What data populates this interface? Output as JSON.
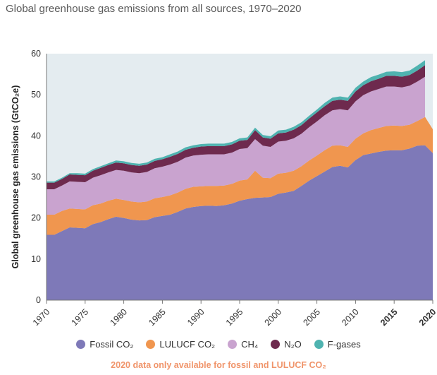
{
  "chart_data": {
    "type": "area",
    "stacked": true,
    "title": "Global greenhouse gas emissions from all sources, 1970–2020",
    "ylabel": "Global greenhouse gas emissions (GtCO₂e)",
    "xlabel": "",
    "xlim": [
      1970,
      2020
    ],
    "ylim": [
      0,
      60
    ],
    "yticks": [
      0,
      10,
      20,
      30,
      40,
      50,
      60
    ],
    "xticks": [
      1970,
      1975,
      1980,
      1985,
      1990,
      1995,
      2000,
      2005,
      2010,
      2015,
      2020
    ],
    "highlight_ticks": {
      "2015": "#222222",
      "2020": "#e8743b"
    },
    "x": [
      1970,
      1971,
      1972,
      1973,
      1974,
      1975,
      1976,
      1977,
      1978,
      1979,
      1980,
      1981,
      1982,
      1983,
      1984,
      1985,
      1986,
      1987,
      1988,
      1989,
      1990,
      1991,
      1992,
      1993,
      1994,
      1995,
      1996,
      1997,
      1998,
      1999,
      2000,
      2001,
      2002,
      2003,
      2004,
      2005,
      2006,
      2007,
      2008,
      2009,
      2010,
      2011,
      2012,
      2013,
      2014,
      2015,
      2016,
      2017,
      2018,
      2019,
      2020
    ],
    "series": [
      {
        "name": "Fossil CO₂",
        "color": "#7e79b8",
        "values": [
          15.9,
          15.9,
          16.8,
          17.7,
          17.6,
          17.5,
          18.5,
          19.0,
          19.7,
          20.3,
          20.0,
          19.6,
          19.4,
          19.5,
          20.2,
          20.5,
          20.8,
          21.5,
          22.3,
          22.7,
          22.9,
          23.0,
          22.9,
          23.1,
          23.5,
          24.2,
          24.6,
          24.9,
          25.0,
          25.1,
          25.9,
          26.2,
          26.6,
          27.8,
          29.1,
          30.2,
          31.3,
          32.4,
          32.7,
          32.3,
          34.1,
          35.3,
          35.7,
          36.1,
          36.4,
          36.5,
          36.5,
          36.9,
          37.6,
          37.7,
          35.8
        ]
      },
      {
        "name": "LULUCF CO₂",
        "color": "#f0964f",
        "values": [
          4.9,
          4.9,
          4.9,
          4.6,
          4.6,
          4.6,
          4.6,
          4.5,
          4.5,
          4.4,
          4.4,
          4.4,
          4.4,
          4.5,
          4.6,
          4.6,
          4.7,
          4.7,
          4.8,
          4.9,
          4.8,
          4.8,
          4.9,
          4.8,
          4.8,
          4.9,
          4.8,
          6.6,
          4.8,
          4.6,
          4.9,
          4.8,
          4.9,
          4.8,
          4.9,
          5.0,
          5.2,
          5.2,
          5.0,
          5.0,
          5.2,
          5.3,
          5.7,
          5.8,
          6.0,
          6.0,
          5.9,
          5.8,
          6.0,
          6.9,
          5.8
        ]
      },
      {
        "name": "CH₄",
        "color": "#c9a3cf",
        "values": [
          6.2,
          6.2,
          6.2,
          6.6,
          6.6,
          6.6,
          6.7,
          6.9,
          6.9,
          7.0,
          7.1,
          7.1,
          7.1,
          7.2,
          7.3,
          7.4,
          7.5,
          7.5,
          7.6,
          7.6,
          7.7,
          7.7,
          7.7,
          7.6,
          7.6,
          7.7,
          7.6,
          7.7,
          7.8,
          7.6,
          7.8,
          7.8,
          7.9,
          7.9,
          8.1,
          8.3,
          8.5,
          8.6,
          8.8,
          8.9,
          9.1,
          9.3,
          9.4,
          9.5,
          9.6,
          9.5,
          9.4,
          9.5,
          9.6,
          9.8,
          null
        ]
      },
      {
        "name": "N₂O",
        "color": "#6e2a4e",
        "values": [
          1.6,
          1.6,
          1.6,
          1.7,
          1.7,
          1.7,
          1.7,
          1.8,
          1.8,
          1.8,
          1.8,
          1.8,
          1.8,
          1.8,
          1.8,
          1.8,
          1.9,
          1.9,
          1.9,
          1.9,
          2.0,
          2.0,
          2.0,
          2.0,
          2.0,
          2.0,
          2.0,
          2.2,
          2.0,
          2.0,
          2.0,
          2.0,
          2.1,
          2.1,
          2.1,
          2.2,
          2.2,
          2.3,
          2.3,
          2.3,
          2.4,
          2.4,
          2.5,
          2.5,
          2.6,
          2.6,
          2.6,
          2.6,
          2.7,
          2.8,
          null
        ]
      },
      {
        "name": "F-gases",
        "color": "#4fb3b0",
        "values": [
          0.3,
          0.3,
          0.3,
          0.3,
          0.4,
          0.4,
          0.4,
          0.4,
          0.4,
          0.5,
          0.5,
          0.5,
          0.5,
          0.5,
          0.5,
          0.5,
          0.6,
          0.6,
          0.6,
          0.6,
          0.6,
          0.6,
          0.6,
          0.6,
          0.6,
          0.6,
          0.6,
          0.6,
          0.6,
          0.6,
          0.7,
          0.7,
          0.7,
          0.7,
          0.7,
          0.7,
          0.8,
          0.8,
          0.8,
          0.8,
          0.9,
          0.9,
          1.0,
          1.0,
          1.0,
          1.1,
          1.1,
          1.1,
          1.2,
          1.2,
          null
        ]
      }
    ],
    "legend": {
      "placement": "bottom"
    },
    "annotation": "2020 data only available for fossil and LULUCF CO₂",
    "plot_background": "#e4ecf0",
    "grid": false
  }
}
